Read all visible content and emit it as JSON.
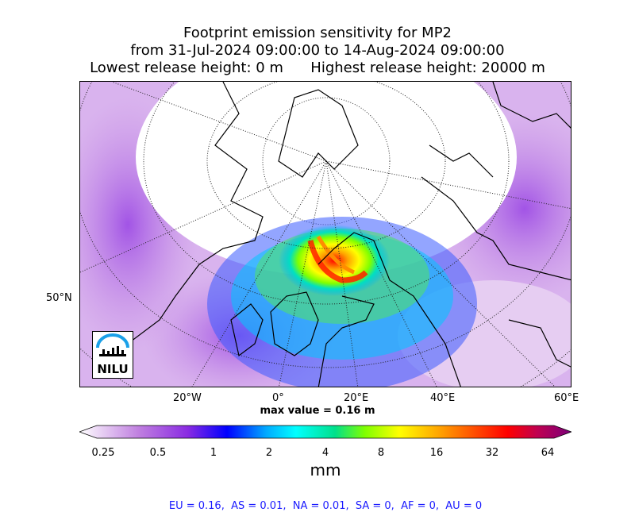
{
  "title": {
    "line1": "Footprint emission sensitivity for MP2",
    "line2": "from 31-Jul-2024 09:00:00 to 14-Aug-2024 09:00:00",
    "line3": "Lowest release height: 0 m      Highest release height: 20000 m"
  },
  "axes": {
    "lat_label": "50°N",
    "lon_labels": [
      "20°W",
      "0°",
      "20°E",
      "40°E",
      "60°E"
    ]
  },
  "max_value": "max value = 0.16 m",
  "colorbar": {
    "labels": [
      "0.25",
      "0.5",
      "1",
      "2",
      "4",
      "8",
      "16",
      "32",
      "64"
    ],
    "unit": "mm",
    "colors": [
      "#ffffff",
      "#c080e0",
      "#8a2be2",
      "#0000ff",
      "#00aaff",
      "#00ffff",
      "#00e08a",
      "#7fff00",
      "#ffff00",
      "#ffa500",
      "#ff4500",
      "#ff0000",
      "#c00050",
      "#7a007a"
    ]
  },
  "logo": {
    "text": "NILU"
  },
  "footer": "EU = 0.16,  AS = 0.01,  NA = 0.01,  SA = 0,  AF = 0,  AU = 0"
}
